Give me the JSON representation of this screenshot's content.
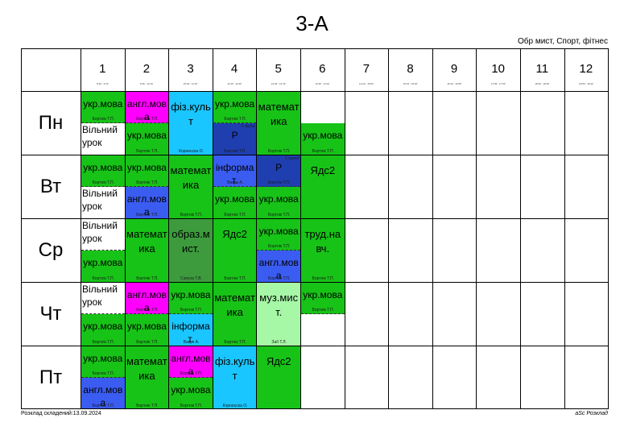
{
  "title": "3-А",
  "subtitle": "Обр мист, Спорт, фітнес",
  "footer_left": "Розклад складений:13.09.2024",
  "footer_right": "aSc Розклад",
  "colors": {
    "green": "#17c317",
    "magenta": "#ff00ff",
    "cyan": "#1ac6ff",
    "navy": "#1f3fb0",
    "blue": "#3a5cf0",
    "darkgreen": "#3d9b3d",
    "lightgreen": "#a6f7a6",
    "white": "#ffffff"
  },
  "periods": [
    {
      "num": "1",
      "time": "8:30 - 9:15"
    },
    {
      "num": "2",
      "time": "9:25 - 10:10"
    },
    {
      "num": "3",
      "time": "10:30 - 11:15"
    },
    {
      "num": "4",
      "time": "11:35 - 12:20"
    },
    {
      "num": "5",
      "time": "12:30 - 13:15"
    },
    {
      "num": "6",
      "time": "13:25 - 14:10"
    },
    {
      "num": "7",
      "time": "14:20 - 15:05"
    },
    {
      "num": "8",
      "time": "15:15 - 16:00"
    },
    {
      "num": "9",
      "time": "16:10 - 16:55"
    },
    {
      "num": "10",
      "time": "17:05 - 17:50"
    },
    {
      "num": "11",
      "time": "18:00 - 18:45"
    },
    {
      "num": "12",
      "time": "18:55 - 19:40"
    }
  ],
  "days": [
    "Пн",
    "Вт",
    "Ср",
    "Чт",
    "Пт"
  ],
  "lessons": [
    {
      "day": 0,
      "period": 0,
      "part": "top",
      "subject": "укр.мова",
      "color": "green",
      "teacher": "Бортнік Т.П."
    },
    {
      "day": 0,
      "period": 0,
      "part": "bottom",
      "subject": "Вільний урок",
      "color": "white",
      "teacher": ""
    },
    {
      "day": 0,
      "period": 1,
      "part": "top",
      "subject": "англ.мова",
      "color": "magenta",
      "teacher": "Бортнік Т.П."
    },
    {
      "day": 0,
      "period": 1,
      "part": "bottom",
      "subject": "укр.мова",
      "color": "green",
      "teacher": "Бортнік Т.П."
    },
    {
      "day": 0,
      "period": 2,
      "part": "full",
      "subject": "фіз.культ",
      "color": "cyan",
      "teacher": "Корнеєска О."
    },
    {
      "day": 0,
      "period": 3,
      "part": "top",
      "subject": "укр.мова",
      "color": "green",
      "teacher": "Бортнік Т.П."
    },
    {
      "day": 0,
      "period": 3,
      "part": "bottom",
      "subject": "Р",
      "color": "navy",
      "teacher": "Бортнік Т.П.",
      "room": "1 група"
    },
    {
      "day": 0,
      "period": 4,
      "part": "full",
      "subject": "математика",
      "color": "green",
      "teacher": "Бортнік Т.П."
    },
    {
      "day": 0,
      "period": 5,
      "part": "bottom",
      "subject": "укр.мова",
      "color": "green",
      "teacher": "Бортнік Т.П."
    },
    {
      "day": 1,
      "period": 0,
      "part": "top",
      "subject": "укр.мова",
      "color": "green",
      "teacher": "Бортнік Т.П."
    },
    {
      "day": 1,
      "period": 0,
      "part": "bottom",
      "subject": "Вільний урок",
      "color": "white",
      "teacher": ""
    },
    {
      "day": 1,
      "period": 1,
      "part": "top",
      "subject": "укр.мова",
      "color": "green",
      "teacher": "Бортнік Т.П."
    },
    {
      "day": 1,
      "period": 1,
      "part": "bottom",
      "subject": "англ.мова",
      "color": "blue",
      "teacher": "Бортнік Т.П."
    },
    {
      "day": 1,
      "period": 2,
      "part": "full",
      "subject": "математика",
      "color": "green",
      "teacher": "Бортнік Т.П."
    },
    {
      "day": 1,
      "period": 3,
      "part": "top",
      "subject": "інформат.",
      "color": "blue",
      "teacher": "Вакун А."
    },
    {
      "day": 1,
      "period": 3,
      "part": "bottom",
      "subject": "укр.мова",
      "color": "green",
      "teacher": "Бортнік Т.П."
    },
    {
      "day": 1,
      "period": 4,
      "part": "top",
      "subject": "Р",
      "color": "navy",
      "teacher": "Бортнік Т.П.",
      "room": "1 група"
    },
    {
      "day": 1,
      "period": 4,
      "part": "bottom",
      "subject": "укр.мова",
      "color": "green",
      "teacher": "Бортнік Т.П."
    },
    {
      "day": 1,
      "period": 5,
      "part": "full",
      "subject": "Ядс2",
      "color": "green",
      "teacher": ""
    },
    {
      "day": 2,
      "period": 0,
      "part": "top",
      "subject": "Вільний урок",
      "color": "white",
      "teacher": ""
    },
    {
      "day": 2,
      "period": 0,
      "part": "bottom",
      "subject": "укр.мова",
      "color": "green",
      "teacher": "Бортнік Т.П."
    },
    {
      "day": 2,
      "period": 1,
      "part": "full",
      "subject": "математика",
      "color": "green",
      "teacher": "Бортнік Т.П."
    },
    {
      "day": 2,
      "period": 2,
      "part": "full",
      "subject": "образ.мист.",
      "color": "darkgreen",
      "teacher": "Сапуха Т.В."
    },
    {
      "day": 2,
      "period": 3,
      "part": "full",
      "subject": "Ядс2",
      "color": "green",
      "teacher": "Бортнік Т.П."
    },
    {
      "day": 2,
      "period": 4,
      "part": "top",
      "subject": "укр.мова",
      "color": "green",
      "teacher": "Бортнік Т.П."
    },
    {
      "day": 2,
      "period": 4,
      "part": "bottom",
      "subject": "англ.мова",
      "color": "blue",
      "teacher": "Бортнік Т.П."
    },
    {
      "day": 2,
      "period": 5,
      "part": "full",
      "subject": "труд.навч.",
      "color": "green",
      "teacher": "Бортнік Т.П."
    },
    {
      "day": 3,
      "period": 0,
      "part": "top",
      "subject": "Вільний урок",
      "color": "white",
      "teacher": ""
    },
    {
      "day": 3,
      "period": 0,
      "part": "bottom",
      "subject": "укр.мова",
      "color": "green",
      "teacher": "Бортнік Т.П."
    },
    {
      "day": 3,
      "period": 1,
      "part": "top",
      "subject": "англ.мова",
      "color": "magenta",
      "teacher": "Бортнік Т.П."
    },
    {
      "day": 3,
      "period": 1,
      "part": "bottom",
      "subject": "укр.мова",
      "color": "green",
      "teacher": "Бортнік Т.П."
    },
    {
      "day": 3,
      "period": 2,
      "part": "top",
      "subject": "укр.мова",
      "color": "green",
      "teacher": "Бортнік Т.П."
    },
    {
      "day": 3,
      "period": 2,
      "part": "bottom",
      "subject": "інформат.",
      "color": "cyan",
      "teacher": "Вакун А."
    },
    {
      "day": 3,
      "period": 3,
      "part": "full",
      "subject": "математика",
      "color": "green",
      "teacher": "Бортнік Т.П."
    },
    {
      "day": 3,
      "period": 4,
      "part": "full",
      "subject": "муз.мист.",
      "color": "lightgreen",
      "teacher": "Заїї Т.Л."
    },
    {
      "day": 3,
      "period": 5,
      "part": "top",
      "subject": "укр.мова",
      "color": "green",
      "teacher": "Бортнік Т.П."
    },
    {
      "day": 4,
      "period": 0,
      "part": "top",
      "subject": "укр.мова",
      "color": "green",
      "teacher": "Бортнік Т.П."
    },
    {
      "day": 4,
      "period": 0,
      "part": "bottom",
      "subject": "англ.мова",
      "color": "blue",
      "teacher": "Бортнік Т.П."
    },
    {
      "day": 4,
      "period": 1,
      "part": "full",
      "subject": "математика",
      "color": "green",
      "teacher": "Бортнік Т.П."
    },
    {
      "day": 4,
      "period": 2,
      "part": "top",
      "subject": "англ.мова",
      "color": "magenta",
      "teacher": "Бортнік Т.П."
    },
    {
      "day": 4,
      "period": 2,
      "part": "bottom",
      "subject": "укр.мова",
      "color": "green",
      "teacher": "Бортнік Т.П."
    },
    {
      "day": 4,
      "period": 3,
      "part": "full",
      "subject": "фіз.культ",
      "color": "cyan",
      "teacher": "Корнеєска О."
    },
    {
      "day": 4,
      "period": 4,
      "part": "full",
      "subject": "Ядс2",
      "color": "green",
      "teacher": ""
    }
  ]
}
